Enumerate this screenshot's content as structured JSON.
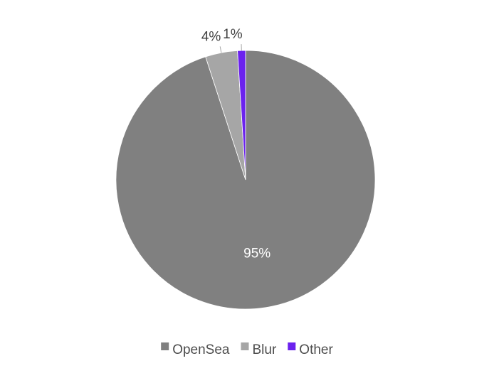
{
  "chart_data": {
    "type": "pie",
    "title": "",
    "start_angle_deg": 0,
    "direction": "clockwise",
    "legend_position": "bottom",
    "slices": [
      {
        "name": "OpenSea",
        "value": 95,
        "label": "95%",
        "color": "#808080",
        "label_color": "#ffffff",
        "label_placement": "inside"
      },
      {
        "name": "Blur",
        "value": 4,
        "label": "4%",
        "color": "#a6a6a6",
        "label_color": "#404040",
        "label_placement": "outside"
      },
      {
        "name": "Other",
        "value": 1,
        "label": "1%",
        "color": "#6b22ee",
        "label_color": "#404040",
        "label_placement": "outside"
      }
    ]
  }
}
